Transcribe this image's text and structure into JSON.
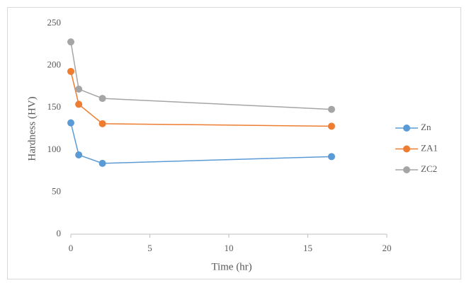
{
  "chart_data": {
    "type": "line",
    "x_label": "Time (hr)",
    "y_label": "Hardness (HV)",
    "x": [
      0,
      0.5,
      2,
      16.5
    ],
    "series": [
      {
        "name": "Zn",
        "color": "#5b9bd5",
        "values": [
          132,
          94,
          84,
          92
        ]
      },
      {
        "name": "ZA1",
        "color": "#ed7d31",
        "values": [
          193,
          154,
          131,
          128
        ]
      },
      {
        "name": "ZC2",
        "color": "#a5a5a5",
        "values": [
          228,
          172,
          161,
          148
        ]
      }
    ],
    "xlim": [
      0,
      20
    ],
    "xticks": [
      0,
      5,
      10,
      15,
      20
    ],
    "ylim": [
      0,
      250
    ],
    "yticks": [
      0,
      50,
      100,
      150,
      200,
      250
    ],
    "grid": false,
    "legend": "right"
  }
}
